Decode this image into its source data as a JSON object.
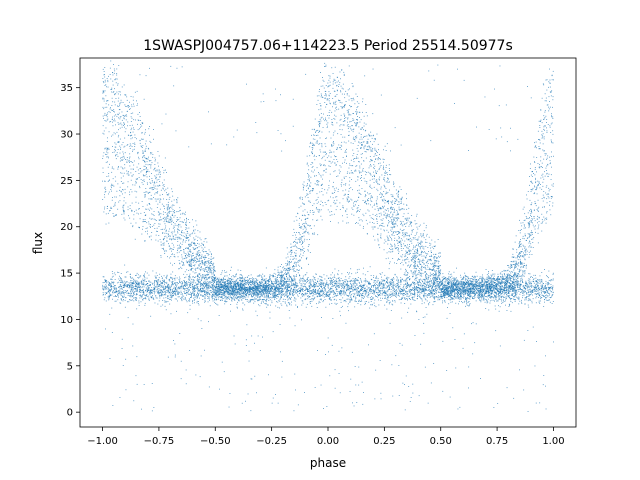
{
  "chart_data": {
    "type": "scatter",
    "title": "1SWASPJ004757.06+114223.5 Period 25514.50977s",
    "xlabel": "phase",
    "ylabel": "flux",
    "xlim": [
      -1.1,
      1.1
    ],
    "ylim": [
      -1.6,
      38.2
    ],
    "xticks": [
      -1.0,
      -0.75,
      -0.5,
      -0.25,
      0.0,
      0.25,
      0.5,
      0.75,
      1.0
    ],
    "xtick_labels": [
      "−1.00",
      "−0.75",
      "−0.50",
      "−0.25",
      "0.00",
      "0.25",
      "0.50",
      "0.75",
      "1.00"
    ],
    "yticks": [
      0,
      5,
      10,
      15,
      20,
      25,
      30,
      35
    ],
    "ytick_labels": [
      "0",
      "5",
      "10",
      "15",
      "20",
      "25",
      "30",
      "35"
    ],
    "point_color": "#1f77b4",
    "grid": false,
    "series_shape": {
      "baseline_flux": 13.3,
      "baseline_band": [
        10,
        15.5
      ],
      "peak_phases": [
        -1.0,
        0.0,
        1.0
      ],
      "peak_fluxes": [
        23.5,
        28,
        32.5,
        35.5
      ],
      "max_flux": 37.5,
      "min_flux": 0
    }
  }
}
